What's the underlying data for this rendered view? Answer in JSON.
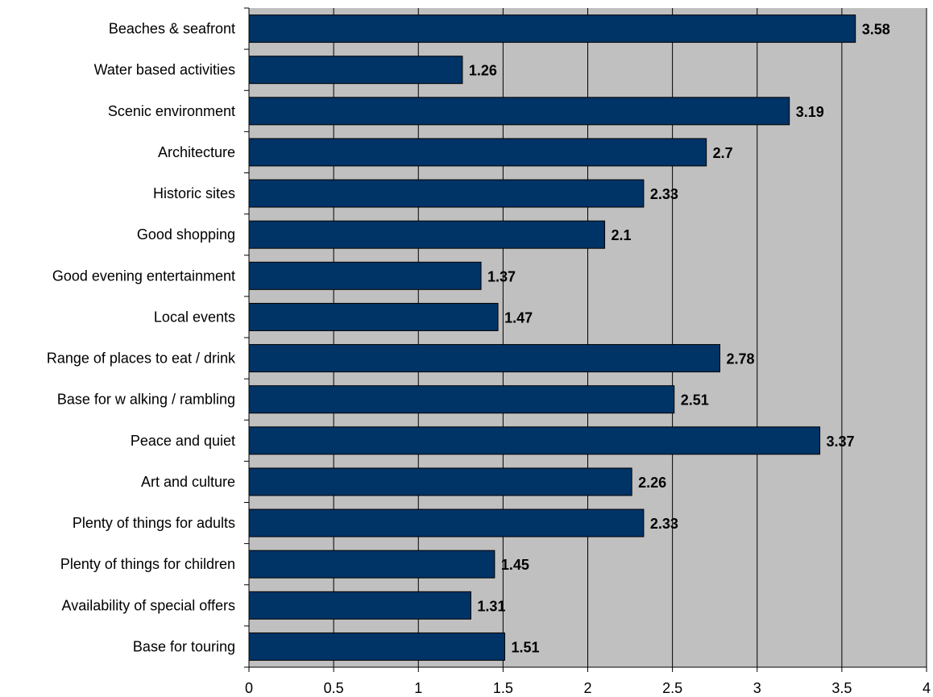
{
  "chart_data": {
    "type": "bar",
    "orientation": "horizontal",
    "title": "",
    "xlabel": "",
    "ylabel": "",
    "categories": [
      "Beaches & seafront",
      "Water based activities",
      "Scenic environment",
      "Architecture",
      "Historic sites",
      "Good shopping",
      "Good evening entertainment",
      "Local events",
      "Range of places to eat / drink",
      "Base for w alking / rambling",
      "Peace and quiet",
      "Art and culture",
      "Plenty of things for adults",
      "Plenty of things for children",
      "Availability of special offers",
      "Base for touring"
    ],
    "values": [
      3.58,
      1.26,
      3.19,
      2.7,
      2.33,
      2.1,
      1.37,
      1.47,
      2.78,
      2.51,
      3.37,
      2.26,
      2.33,
      1.45,
      1.31,
      1.51
    ],
    "data_labels": [
      "3.58",
      "1.26",
      "3.19",
      "2.7",
      "2.33",
      "2.1",
      "1.37",
      "1.47",
      "2.78",
      "2.51",
      "3.37",
      "2.26",
      "2.33",
      "1.45",
      "1.31",
      "1.51"
    ],
    "xlim": [
      0,
      4
    ],
    "x_ticks": [
      0,
      0.5,
      1,
      1.5,
      2,
      2.5,
      3,
      3.5,
      4
    ],
    "x_tick_labels": [
      "0",
      "0.5",
      "1",
      "1.5",
      "2",
      "2.5",
      "3",
      "3.5",
      "4"
    ],
    "grid": "vertical",
    "legend": "none",
    "colors": {
      "bar_fill": "#003366",
      "bar_stroke": "#000000",
      "plot_background": "#c0c0c0",
      "grid": "#000000"
    }
  }
}
